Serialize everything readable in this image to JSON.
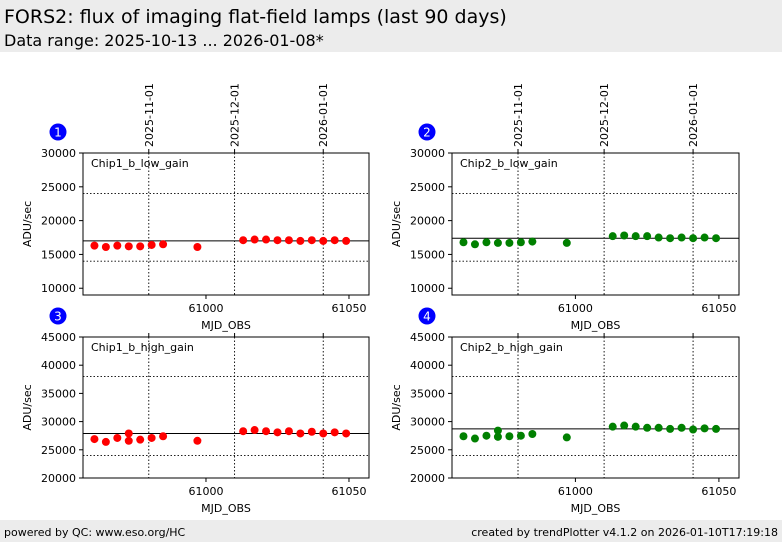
{
  "header": {
    "title": "FORS2: flux of imaging flat-field lamps (last 90 days)",
    "subtitle": "Data range: 2025-10-13 ... 2026-01-08*"
  },
  "footer": {
    "left": "powered by QC: www.eso.org/HC",
    "right": "created by trendPlotter v4.1.2 on 2026-01-10T17:19:18"
  },
  "colors": {
    "red_series": "#ff0000",
    "green_series": "#008000",
    "badge": "#0000ff"
  },
  "chart_data": [
    {
      "type": "scatter",
      "panel_number": "1",
      "annotation": "Chip1_b_low_gain",
      "xlabel": "MJD_OBS",
      "ylabel": "ADU/sec",
      "xlim": [
        60957,
        61057
      ],
      "ylim": [
        9000,
        30000
      ],
      "xticks": [
        61000,
        61050
      ],
      "yticks": [
        10000,
        15000,
        20000,
        25000,
        30000
      ],
      "date_ticks": [
        {
          "label": "2025-11-01",
          "x": 60980
        },
        {
          "label": "2025-12-01",
          "x": 61010
        },
        {
          "label": "2026-01-01",
          "x": 61041
        }
      ],
      "ref_line": 17000,
      "limit_lines": [
        14000,
        24000
      ],
      "color": "#ff0000",
      "x": [
        60961,
        60965,
        60969,
        60973,
        60977,
        60981,
        60985,
        60997,
        61013,
        61017,
        61021,
        61025,
        61029,
        61033,
        61037,
        61041,
        61045,
        61049
      ],
      "y": [
        16300,
        16100,
        16300,
        16200,
        16200,
        16400,
        16500,
        16100,
        17100,
        17200,
        17200,
        17100,
        17100,
        17000,
        17100,
        17000,
        17100,
        17000
      ]
    },
    {
      "type": "scatter",
      "panel_number": "2",
      "annotation": "Chip2_b_low_gain",
      "xlabel": "MJD_OBS",
      "ylabel": "ADU/sec",
      "xlim": [
        60957,
        61057
      ],
      "ylim": [
        9000,
        30000
      ],
      "xticks": [
        61000,
        61050
      ],
      "yticks": [
        10000,
        15000,
        20000,
        25000,
        30000
      ],
      "date_ticks": [
        {
          "label": "2025-11-01",
          "x": 60980
        },
        {
          "label": "2025-12-01",
          "x": 61010
        },
        {
          "label": "2026-01-01",
          "x": 61041
        }
      ],
      "ref_line": 17400,
      "limit_lines": [
        14000,
        24000
      ],
      "color": "#008000",
      "x": [
        60961,
        60965,
        60969,
        60973,
        60977,
        60981,
        60985,
        60997,
        61013,
        61017,
        61021,
        61025,
        61029,
        61033,
        61037,
        61041,
        61045,
        61049
      ],
      "y": [
        16800,
        16500,
        16800,
        16700,
        16700,
        16800,
        16900,
        16700,
        17700,
        17800,
        17700,
        17700,
        17500,
        17400,
        17500,
        17400,
        17500,
        17400
      ]
    },
    {
      "type": "scatter",
      "panel_number": "3",
      "annotation": "Chip1_b_high_gain",
      "xlabel": "MJD_OBS",
      "ylabel": "ADU/sec",
      "xlim": [
        60957,
        61057
      ],
      "ylim": [
        20000,
        45000
      ],
      "xticks": [
        61000,
        61050
      ],
      "yticks": [
        20000,
        25000,
        30000,
        35000,
        40000,
        45000
      ],
      "date_ticks": [
        {
          "label": "2025-11-01",
          "x": 60980
        },
        {
          "label": "2025-12-01",
          "x": 61010
        },
        {
          "label": "2026-01-01",
          "x": 61041
        }
      ],
      "ref_line": 27900,
      "limit_lines": [
        24000,
        38000
      ],
      "color": "#ff0000",
      "x": [
        60961,
        60965,
        60969,
        60973,
        60973,
        60977,
        60981,
        60985,
        60997,
        61013,
        61017,
        61021,
        61025,
        61029,
        61033,
        61037,
        61041,
        61045,
        61049
      ],
      "y": [
        26900,
        26400,
        27100,
        27900,
        26600,
        26800,
        27100,
        27400,
        26600,
        28300,
        28500,
        28300,
        28100,
        28300,
        27900,
        28200,
        27900,
        28100,
        27900
      ]
    },
    {
      "type": "scatter",
      "panel_number": "4",
      "annotation": "Chip2_b_high_gain",
      "xlabel": "MJD_OBS",
      "ylabel": "ADU/sec",
      "xlim": [
        60957,
        61057
      ],
      "ylim": [
        20000,
        45000
      ],
      "xticks": [
        61000,
        61050
      ],
      "yticks": [
        20000,
        25000,
        30000,
        35000,
        40000,
        45000
      ],
      "date_ticks": [
        {
          "label": "2025-11-01",
          "x": 60980
        },
        {
          "label": "2025-12-01",
          "x": 61010
        },
        {
          "label": "2026-01-01",
          "x": 61041
        }
      ],
      "ref_line": 28700,
      "limit_lines": [
        24000,
        38000
      ],
      "color": "#008000",
      "x": [
        60961,
        60965,
        60969,
        60973,
        60973,
        60977,
        60981,
        60985,
        60997,
        61013,
        61017,
        61021,
        61025,
        61029,
        61033,
        61037,
        61041,
        61045,
        61049
      ],
      "y": [
        27400,
        27000,
        27500,
        28400,
        27300,
        27400,
        27500,
        27800,
        27200,
        29100,
        29300,
        29100,
        28900,
        28900,
        28700,
        28900,
        28600,
        28800,
        28700
      ]
    }
  ]
}
